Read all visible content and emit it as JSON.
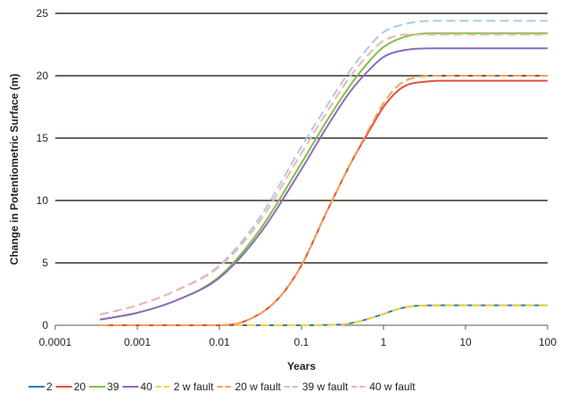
{
  "chart_data": {
    "type": "line",
    "title": "",
    "xlabel": "Years",
    "ylabel": "Change in Potentiometric Surface (m)",
    "xscale": "log",
    "xlim": [
      0.0001,
      100
    ],
    "ylim": [
      0,
      25
    ],
    "x_ticks": [
      "0.0001",
      "0.001",
      "0.01",
      "0.1",
      "1",
      "10",
      "100"
    ],
    "y_ticks": [
      "0",
      "5",
      "10",
      "15",
      "20",
      "25"
    ],
    "grid": "horizontal",
    "legend_position": "bottom",
    "series": [
      {
        "name": "2",
        "color": "#2f7bbf",
        "dash": "solid",
        "x": [
          0.00035,
          0.1,
          0.3,
          0.5,
          1,
          1.5,
          2.5,
          5,
          100
        ],
        "y": [
          0,
          0,
          0.05,
          0.3,
          0.9,
          1.3,
          1.55,
          1.6,
          1.6
        ]
      },
      {
        "name": "20",
        "color": "#e0503a",
        "dash": "solid",
        "x": [
          0.00035,
          0.01,
          0.02,
          0.05,
          0.1,
          0.2,
          0.4,
          0.7,
          1,
          1.5,
          2,
          3,
          5,
          100
        ],
        "y": [
          0,
          0,
          0.3,
          2,
          4.8,
          9,
          13,
          15.8,
          17.5,
          18.8,
          19.3,
          19.5,
          19.6,
          19.6
        ]
      },
      {
        "name": "39",
        "color": "#7cc242",
        "dash": "solid",
        "x": [
          0.00035,
          0.001,
          0.003,
          0.01,
          0.03,
          0.1,
          0.2,
          0.4,
          0.7,
          1,
          2,
          4,
          100
        ],
        "y": [
          0.45,
          1,
          2,
          3.9,
          7.5,
          13,
          16.3,
          19.3,
          21.3,
          22.3,
          23.2,
          23.4,
          23.4
        ]
      },
      {
        "name": "40",
        "color": "#8c6bbf",
        "dash": "solid",
        "x": [
          0.00035,
          0.001,
          0.003,
          0.01,
          0.03,
          0.1,
          0.2,
          0.4,
          0.7,
          1,
          2,
          4,
          100
        ],
        "y": [
          0.45,
          1,
          2,
          3.8,
          7.2,
          12.5,
          15.8,
          18.8,
          20.6,
          21.5,
          22.1,
          22.2,
          22.2
        ]
      },
      {
        "name": "2 w fault",
        "color": "#f2d23c",
        "dash": "dashed",
        "x": [
          0.00035,
          0.1,
          0.3,
          0.5,
          1,
          1.5,
          2.5,
          5,
          100
        ],
        "y": [
          0,
          0,
          0.05,
          0.3,
          0.9,
          1.3,
          1.55,
          1.6,
          1.6
        ]
      },
      {
        "name": "20 w fault",
        "color": "#f4a05a",
        "dash": "dashed",
        "x": [
          0.00035,
          0.01,
          0.02,
          0.05,
          0.1,
          0.2,
          0.4,
          0.7,
          1,
          1.5,
          2,
          3,
          5,
          100
        ],
        "y": [
          0,
          0,
          0.3,
          2,
          4.8,
          9,
          13,
          16,
          17.8,
          19.2,
          19.7,
          19.95,
          20,
          20
        ]
      },
      {
        "name": "39 w fault",
        "color": "#a9cbe8",
        "dash": "dashed",
        "x": [
          0.00035,
          0.001,
          0.003,
          0.01,
          0.03,
          0.1,
          0.2,
          0.4,
          0.7,
          1,
          2,
          4,
          100
        ],
        "y": [
          0.85,
          1.6,
          2.8,
          4.8,
          8.5,
          14.3,
          17.5,
          20.5,
          22.5,
          23.5,
          24.2,
          24.4,
          24.4
        ]
      },
      {
        "name": "40 w fault",
        "color": "#f0b2b2",
        "dash": "dashed",
        "x": [
          0.00035,
          0.001,
          0.003,
          0.01,
          0.03,
          0.1,
          0.2,
          0.4,
          0.7,
          1,
          2,
          4,
          100
        ],
        "y": [
          0.85,
          1.6,
          2.8,
          4.7,
          8.2,
          13.8,
          17,
          20,
          21.9,
          22.8,
          23.3,
          23.3,
          23.3
        ]
      }
    ]
  }
}
